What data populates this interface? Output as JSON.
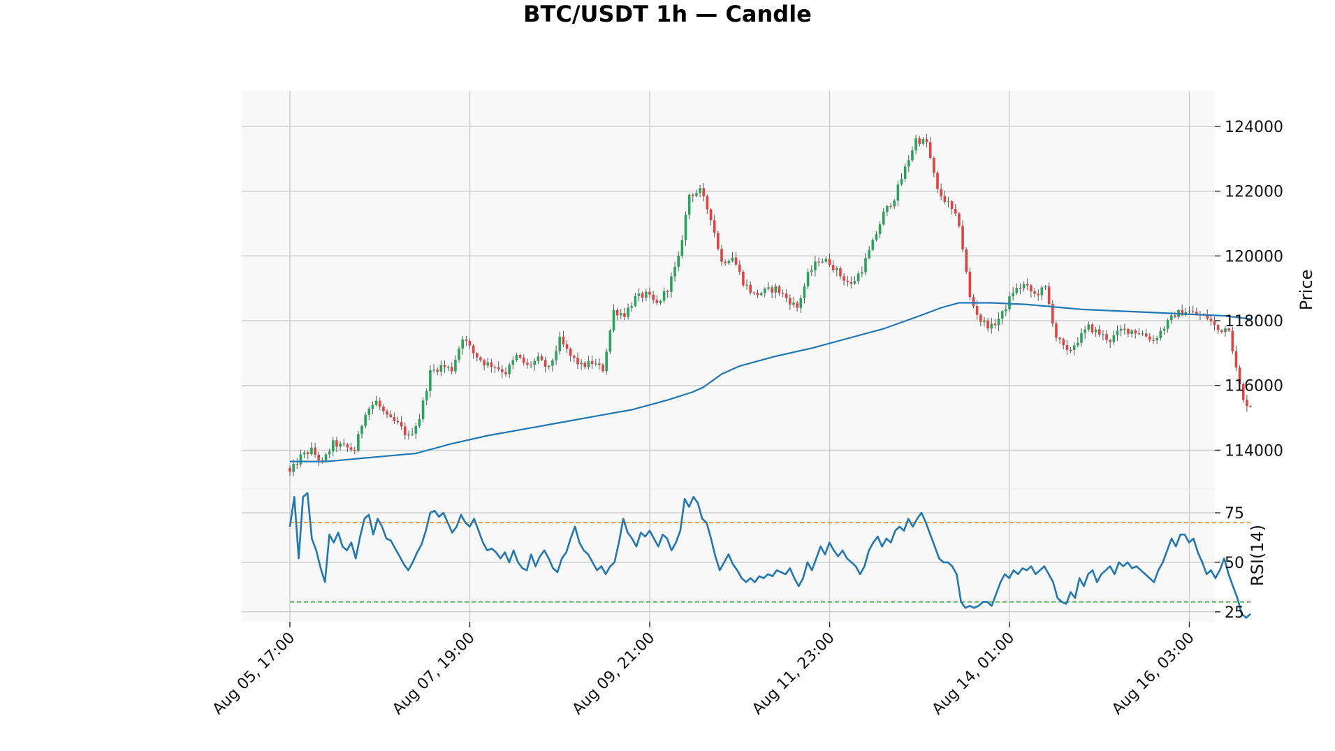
{
  "chart_data": {
    "type": "candlestick",
    "title": "BTC/USDT 1h — Candle",
    "x_tick_labels": [
      "Aug 05, 17:00",
      "Aug 07, 19:00",
      "Aug 09, 21:00",
      "Aug 11, 23:00",
      "Aug 14, 01:00",
      "Aug 16, 03:00"
    ],
    "price_panel": {
      "ylabel": "Price",
      "ylim": [
        112800,
        125100
      ],
      "yticks": [
        114000,
        116000,
        118000,
        120000,
        122000,
        124000
      ],
      "ytick_labels": [
        "114000",
        "116000",
        "118000",
        "120000",
        "122000",
        "124000"
      ],
      "close_anchors": [
        [
          0,
          113300
        ],
        [
          3,
          113800
        ],
        [
          6,
          114000
        ],
        [
          9,
          113600
        ],
        [
          12,
          114200
        ],
        [
          15,
          114100
        ],
        [
          18,
          114000
        ],
        [
          21,
          115200
        ],
        [
          24,
          115500
        ],
        [
          27,
          115000
        ],
        [
          30,
          114800
        ],
        [
          33,
          114400
        ],
        [
          36,
          115000
        ],
        [
          39,
          116400
        ],
        [
          42,
          116600
        ],
        [
          45,
          116500
        ],
        [
          48,
          117500
        ],
        [
          51,
          117000
        ],
        [
          54,
          116700
        ],
        [
          57,
          116600
        ],
        [
          60,
          116400
        ],
        [
          63,
          116900
        ],
        [
          66,
          116600
        ],
        [
          69,
          116800
        ],
        [
          72,
          116500
        ],
        [
          75,
          117400
        ],
        [
          78,
          116900
        ],
        [
          81,
          116600
        ],
        [
          84,
          116700
        ],
        [
          87,
          116500
        ],
        [
          90,
          118300
        ],
        [
          93,
          118200
        ],
        [
          96,
          118700
        ],
        [
          99,
          118800
        ],
        [
          102,
          118500
        ],
        [
          105,
          119000
        ],
        [
          108,
          119900
        ],
        [
          111,
          121900
        ],
        [
          114,
          122000
        ],
        [
          117,
          121200
        ],
        [
          120,
          119800
        ],
        [
          123,
          120000
        ],
        [
          126,
          119200
        ],
        [
          129,
          118800
        ],
        [
          132,
          118900
        ],
        [
          135,
          119000
        ],
        [
          138,
          118700
        ],
        [
          141,
          118400
        ],
        [
          144,
          119400
        ],
        [
          147,
          119900
        ],
        [
          150,
          119800
        ],
        [
          153,
          119400
        ],
        [
          156,
          119100
        ],
        [
          159,
          119600
        ],
        [
          162,
          120400
        ],
        [
          165,
          121300
        ],
        [
          168,
          121800
        ],
        [
          171,
          122700
        ],
        [
          174,
          123600
        ],
        [
          177,
          123500
        ],
        [
          180,
          122000
        ],
        [
          183,
          121600
        ],
        [
          186,
          121000
        ],
        [
          189,
          118700
        ],
        [
          192,
          118000
        ],
        [
          195,
          117800
        ],
        [
          198,
          118200
        ],
        [
          201,
          118900
        ],
        [
          204,
          119100
        ],
        [
          207,
          118800
        ],
        [
          210,
          119000
        ],
        [
          213,
          117500
        ],
        [
          216,
          117000
        ],
        [
          219,
          117400
        ],
        [
          222,
          117800
        ],
        [
          225,
          117600
        ],
        [
          228,
          117400
        ],
        [
          231,
          117700
        ],
        [
          234,
          117700
        ],
        [
          237,
          117600
        ],
        [
          240,
          117400
        ],
        [
          243,
          117800
        ],
        [
          246,
          118200
        ],
        [
          249,
          118300
        ],
        [
          252,
          118200
        ],
        [
          255,
          118100
        ],
        [
          258,
          117700
        ],
        [
          261,
          117800
        ],
        [
          263,
          116500
        ],
        [
          265,
          115500
        ],
        [
          267,
          115400
        ]
      ],
      "ma_line": {
        "color": "#1f77b4",
        "points": [
          [
            0,
            113650
          ],
          [
            10,
            113650
          ],
          [
            25,
            113800
          ],
          [
            35,
            113900
          ],
          [
            45,
            114200
          ],
          [
            55,
            114450
          ],
          [
            65,
            114650
          ],
          [
            75,
            114850
          ],
          [
            85,
            115050
          ],
          [
            95,
            115250
          ],
          [
            105,
            115550
          ],
          [
            112,
            115800
          ],
          [
            115,
            115950
          ],
          [
            120,
            116350
          ],
          [
            125,
            116600
          ],
          [
            135,
            116900
          ],
          [
            145,
            117150
          ],
          [
            155,
            117450
          ],
          [
            165,
            117750
          ],
          [
            175,
            118150
          ],
          [
            181,
            118400
          ],
          [
            186,
            118550
          ],
          [
            195,
            118550
          ],
          [
            205,
            118500
          ],
          [
            210,
            118450
          ],
          [
            220,
            118350
          ],
          [
            230,
            118300
          ],
          [
            240,
            118250
          ],
          [
            250,
            118200
          ],
          [
            260,
            118150
          ],
          [
            267,
            118050
          ]
        ]
      },
      "up_color": "#26a65b",
      "down_color": "#e84040"
    },
    "rsi_panel": {
      "ylabel": "RSI(14)",
      "ylim": [
        20,
        87
      ],
      "yticks": [
        25,
        50,
        75
      ],
      "ytick_labels": [
        "25",
        "50",
        "75"
      ],
      "overbought": 70,
      "oversold": 30,
      "overbought_color": "#ff7f0e",
      "oversold_color": "#2ca02c",
      "line_color": "#1f77b4",
      "points": [
        [
          0,
          68
        ],
        [
          1,
          83
        ],
        [
          2,
          52
        ],
        [
          3,
          83
        ],
        [
          4,
          85
        ],
        [
          5,
          62
        ],
        [
          6,
          56
        ],
        [
          7,
          47
        ],
        [
          8,
          40
        ],
        [
          9,
          64
        ],
        [
          10,
          60
        ],
        [
          11,
          65
        ],
        [
          12,
          58
        ],
        [
          13,
          56
        ],
        [
          14,
          60
        ],
        [
          15,
          52
        ],
        [
          16,
          63
        ],
        [
          17,
          72
        ],
        [
          18,
          74
        ],
        [
          19,
          64
        ],
        [
          20,
          72
        ],
        [
          21,
          68
        ],
        [
          22,
          62
        ],
        [
          23,
          61
        ],
        [
          24,
          57
        ],
        [
          25,
          53
        ],
        [
          26,
          49
        ],
        [
          27,
          46
        ],
        [
          28,
          50
        ],
        [
          29,
          55
        ],
        [
          30,
          59
        ],
        [
          31,
          66
        ],
        [
          32,
          75
        ],
        [
          33,
          76
        ],
        [
          34,
          73
        ],
        [
          35,
          75
        ],
        [
          36,
          70
        ],
        [
          37,
          65
        ],
        [
          38,
          68
        ],
        [
          39,
          74
        ],
        [
          40,
          70
        ],
        [
          41,
          68
        ],
        [
          42,
          72
        ],
        [
          43,
          66
        ],
        [
          44,
          60
        ],
        [
          45,
          56
        ],
        [
          46,
          57
        ],
        [
          47,
          55
        ],
        [
          48,
          52
        ],
        [
          49,
          55
        ],
        [
          50,
          50
        ],
        [
          51,
          56
        ],
        [
          52,
          50
        ],
        [
          53,
          47
        ],
        [
          54,
          46
        ],
        [
          55,
          54
        ],
        [
          56,
          48
        ],
        [
          57,
          53
        ],
        [
          58,
          56
        ],
        [
          59,
          52
        ],
        [
          60,
          47
        ],
        [
          61,
          45
        ],
        [
          62,
          52
        ],
        [
          63,
          55
        ],
        [
          64,
          62
        ],
        [
          65,
          68
        ],
        [
          66,
          60
        ],
        [
          67,
          56
        ],
        [
          68,
          54
        ],
        [
          69,
          50
        ],
        [
          70,
          46
        ],
        [
          71,
          48
        ],
        [
          72,
          44
        ],
        [
          73,
          48
        ],
        [
          74,
          50
        ],
        [
          75,
          60
        ],
        [
          76,
          72
        ],
        [
          77,
          65
        ],
        [
          78,
          62
        ],
        [
          79,
          58
        ],
        [
          80,
          65
        ],
        [
          81,
          63
        ],
        [
          82,
          66
        ],
        [
          83,
          62
        ],
        [
          84,
          58
        ],
        [
          85,
          64
        ],
        [
          86,
          62
        ],
        [
          87,
          56
        ],
        [
          88,
          60
        ],
        [
          89,
          66
        ],
        [
          90,
          82
        ],
        [
          91,
          78
        ],
        [
          92,
          83
        ],
        [
          93,
          80
        ],
        [
          94,
          72
        ],
        [
          95,
          70
        ],
        [
          96,
          62
        ],
        [
          97,
          53
        ],
        [
          98,
          46
        ],
        [
          99,
          50
        ],
        [
          100,
          54
        ],
        [
          101,
          49
        ],
        [
          102,
          46
        ],
        [
          103,
          42
        ],
        [
          104,
          40
        ],
        [
          105,
          42
        ],
        [
          106,
          40
        ],
        [
          107,
          43
        ],
        [
          108,
          42
        ],
        [
          109,
          44
        ],
        [
          110,
          43
        ],
        [
          111,
          46
        ],
        [
          112,
          45
        ],
        [
          113,
          44
        ],
        [
          114,
          47
        ],
        [
          115,
          42
        ],
        [
          116,
          38
        ],
        [
          117,
          42
        ],
        [
          118,
          50
        ],
        [
          119,
          46
        ],
        [
          120,
          52
        ],
        [
          121,
          58
        ],
        [
          122,
          54
        ],
        [
          123,
          60
        ],
        [
          124,
          56
        ],
        [
          125,
          53
        ],
        [
          126,
          56
        ],
        [
          127,
          52
        ],
        [
          128,
          50
        ],
        [
          129,
          48
        ],
        [
          130,
          44
        ],
        [
          131,
          48
        ],
        [
          132,
          56
        ],
        [
          133,
          60
        ],
        [
          134,
          63
        ],
        [
          135,
          58
        ],
        [
          136,
          62
        ],
        [
          137,
          60
        ],
        [
          138,
          66
        ],
        [
          139,
          68
        ],
        [
          140,
          66
        ],
        [
          141,
          72
        ],
        [
          142,
          68
        ],
        [
          143,
          72
        ],
        [
          144,
          75
        ],
        [
          145,
          70
        ],
        [
          146,
          64
        ],
        [
          147,
          58
        ],
        [
          148,
          52
        ],
        [
          149,
          50
        ],
        [
          150,
          50
        ],
        [
          151,
          48
        ],
        [
          152,
          44
        ],
        [
          153,
          30
        ],
        [
          154,
          27
        ],
        [
          155,
          28
        ],
        [
          156,
          27
        ],
        [
          157,
          28
        ],
        [
          158,
          30
        ],
        [
          159,
          30
        ],
        [
          160,
          28
        ],
        [
          161,
          34
        ],
        [
          162,
          40
        ],
        [
          163,
          44
        ],
        [
          164,
          42
        ],
        [
          165,
          46
        ],
        [
          166,
          44
        ],
        [
          167,
          47
        ],
        [
          168,
          46
        ],
        [
          169,
          48
        ],
        [
          170,
          44
        ],
        [
          171,
          46
        ],
        [
          172,
          48
        ],
        [
          173,
          44
        ],
        [
          174,
          40
        ],
        [
          175,
          32
        ],
        [
          176,
          30
        ],
        [
          177,
          29
        ],
        [
          178,
          35
        ],
        [
          179,
          32
        ],
        [
          180,
          42
        ],
        [
          181,
          38
        ],
        [
          182,
          44
        ],
        [
          183,
          46
        ],
        [
          184,
          40
        ],
        [
          185,
          44
        ],
        [
          186,
          46
        ],
        [
          187,
          48
        ],
        [
          188,
          44
        ],
        [
          189,
          50
        ],
        [
          190,
          48
        ],
        [
          191,
          50
        ],
        [
          192,
          47
        ],
        [
          193,
          48
        ],
        [
          194,
          46
        ],
        [
          195,
          44
        ],
        [
          196,
          42
        ],
        [
          197,
          40
        ],
        [
          198,
          46
        ],
        [
          199,
          50
        ],
        [
          200,
          56
        ],
        [
          201,
          62
        ],
        [
          202,
          58
        ],
        [
          203,
          64
        ],
        [
          204,
          64
        ],
        [
          205,
          60
        ],
        [
          206,
          62
        ],
        [
          207,
          55
        ],
        [
          208,
          50
        ],
        [
          209,
          44
        ],
        [
          210,
          46
        ],
        [
          211,
          42
        ],
        [
          212,
          46
        ],
        [
          213,
          52
        ],
        [
          214,
          44
        ],
        [
          215,
          38
        ],
        [
          216,
          32
        ],
        [
          217,
          24
        ],
        [
          218,
          22
        ],
        [
          219,
          24
        ]
      ]
    }
  }
}
